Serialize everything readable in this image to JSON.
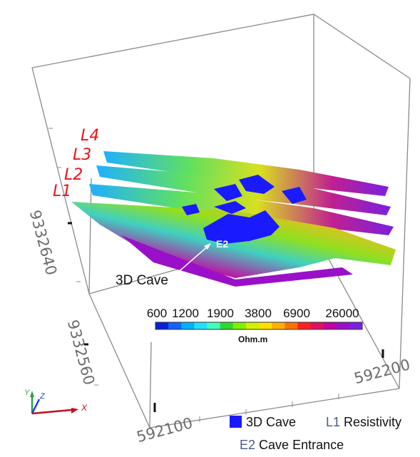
{
  "line_labels": [
    "L4",
    "L3",
    "L2",
    "L1"
  ],
  "axes": {
    "y_ticks": [
      "9332640",
      "9332560"
    ],
    "x_ticks": [
      "592100",
      "592200"
    ],
    "triad": [
      "Y",
      "Z",
      "X"
    ]
  },
  "annotations": {
    "cave_pointer": "3D Cave",
    "entrance": "E2"
  },
  "colorbar": {
    "ticks": [
      "600",
      "1200",
      "1900",
      "3800",
      "6900",
      "26000"
    ],
    "unit": "Ohm.m",
    "colors": [
      "#0a1fd8",
      "#1063ff",
      "#00b0ff",
      "#20e0ff",
      "#40ffc0",
      "#30d830",
      "#80f000",
      "#d0f000",
      "#ffe000",
      "#ffb000",
      "#ff7000",
      "#ff2020",
      "#e01060",
      "#c000a0",
      "#9a10c8",
      "#7a20e0"
    ]
  },
  "legend": {
    "cave_label": "3D Cave",
    "resistivity_code": "L1",
    "resistivity_label": "Resistivity",
    "entrance_code": "E2",
    "entrance_label": "Cave Entrance"
  },
  "colors": {
    "line_label": "#e8141a",
    "cave": "#1a1aff",
    "frame": "#8a8a8a"
  }
}
